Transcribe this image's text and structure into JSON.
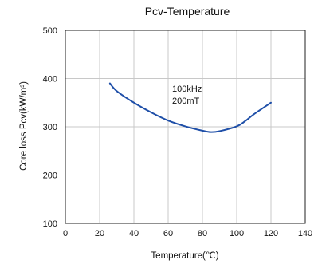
{
  "chart_data": {
    "type": "line",
    "title": "Pcv-Temperature",
    "xlabel": "Temperature(℃)",
    "ylabel": "Core loss Pcv(kW/m³)",
    "xlim": [
      0,
      140
    ],
    "ylim": [
      100,
      500
    ],
    "x_ticks": [
      "0",
      "20",
      "40",
      "60",
      "80",
      "100",
      "120",
      "140"
    ],
    "y_ticks": [
      "100",
      "200",
      "300",
      "400",
      "500"
    ],
    "grid": true,
    "annotations": [
      "100kHz",
      "200mT"
    ],
    "series": [
      {
        "color": "#1f4fa8",
        "x": [
          26,
          30,
          40,
          50,
          60,
          70,
          80,
          85,
          90,
          100,
          105,
          110,
          120
        ],
        "y": [
          390,
          374,
          350,
          330,
          313,
          301,
          292,
          289,
          291,
          301,
          312,
          326,
          350
        ]
      }
    ]
  }
}
